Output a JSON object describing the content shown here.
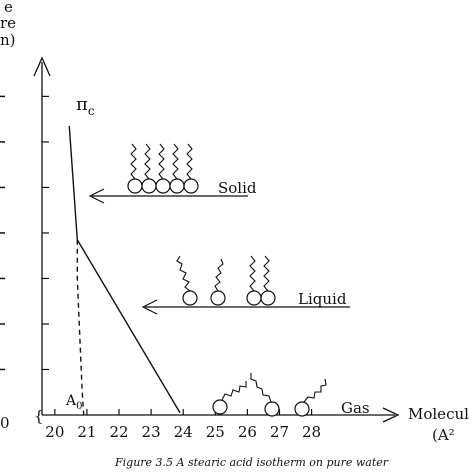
{
  "chart_data": {
    "type": "line",
    "title": "",
    "caption": "Figure 3.5 A stearic acid isotherm on pure water",
    "x_ticks": [
      "20",
      "21",
      "22",
      "23",
      "24",
      "25",
      "26",
      "27",
      "28"
    ],
    "x_lim": [
      19.6,
      30.6
    ],
    "y_tick_count": 7,
    "y_lim": [
      0,
      7.8
    ],
    "y_label_partial": [
      "e",
      "re",
      "n)"
    ],
    "x_label": [
      "Molecul",
      "(A²"
    ],
    "left_axis_zero": "0",
    "series": [
      {
        "style": "solid",
        "points": [
          [
            20.45,
            6.35
          ],
          [
            20.7,
            3.85
          ],
          [
            23.9,
            0.05
          ]
        ]
      },
      {
        "style": "dashed",
        "points": [
          [
            20.7,
            3.85
          ],
          [
            20.7,
            3.0
          ],
          [
            20.85,
            0.55
          ],
          [
            20.9,
            0.0
          ]
        ]
      }
    ],
    "annotations": {
      "collapse_pressure": "π",
      "collapse_subscript": "c",
      "limiting_area": "A",
      "limiting_subscript": "0",
      "phases": [
        {
          "label": "Solid",
          "x": 22.6,
          "y": 4.9
        },
        {
          "label": "Liquid",
          "x": 25.3,
          "y": 2.5
        },
        {
          "label": "Gas",
          "x": 27.9,
          "y": 0.1
        }
      ]
    },
    "break_marker": "{"
  }
}
